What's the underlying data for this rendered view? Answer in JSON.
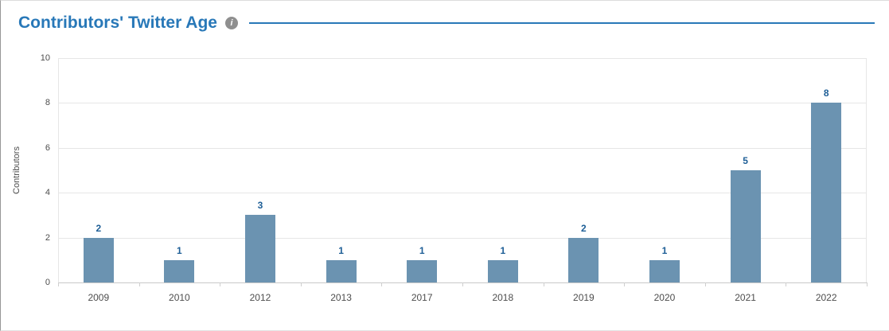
{
  "page": {
    "title": "Contributors' Twitter Age"
  },
  "icons": {
    "info": "i"
  },
  "colors": {
    "title": "#2878b8",
    "accent_line": "#2878b8",
    "bar": "#6b93b1",
    "value_label": "#1d5e96",
    "grid": "#e6e6e6",
    "axis_text": "#4d4d4d"
  },
  "chart_data": {
    "type": "bar",
    "title": "Contributors' Twitter Age",
    "categories": [
      "2009",
      "2010",
      "2012",
      "2013",
      "2017",
      "2018",
      "2019",
      "2020",
      "2021",
      "2022"
    ],
    "values": [
      2,
      1,
      3,
      1,
      1,
      1,
      2,
      1,
      5,
      8
    ],
    "xlabel": "",
    "ylabel": "Contributors",
    "ylim": [
      0,
      10
    ],
    "yticks": [
      0,
      2,
      4,
      6,
      8,
      10
    ],
    "grid": true,
    "value_labels": true,
    "legend": "none"
  }
}
